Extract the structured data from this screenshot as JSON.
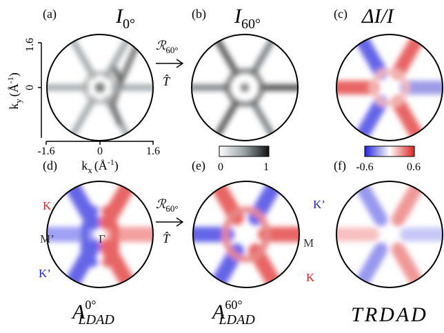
{
  "panels": [
    {
      "label": "(a)",
      "title": {
        "base": "I",
        "sub": "0°"
      }
    },
    {
      "label": "(b)",
      "title": {
        "base": "I",
        "sub": "60°"
      }
    },
    {
      "label": "(c)",
      "title": {
        "text": "ΔI/I"
      }
    },
    {
      "label": "(d)",
      "title": {
        "base": "A",
        "sup": "0°",
        "sub": "LDAD"
      },
      "annotations": [
        "K",
        "M’",
        "K’",
        "Γ"
      ]
    },
    {
      "label": "(e)",
      "title": {
        "base": "A",
        "sup": "60°",
        "sub": "LDAD"
      },
      "annotations": [
        "K’",
        "M",
        "K"
      ]
    },
    {
      "label": "(f)",
      "title": {
        "text": "TRDAD"
      }
    }
  ],
  "axes": {
    "y_label": {
      "base": "k",
      "sub": "y",
      "unit": "(Å",
      "exp": "-1",
      "close": ")"
    },
    "x_label": {
      "base": "k",
      "sub": "x",
      "unit": "(Å",
      "exp": "-1",
      "close": ")"
    },
    "y_ticks": [
      "1.6",
      "0"
    ],
    "x_ticks": [
      "-1.6",
      "0",
      "1.6"
    ]
  },
  "operators": [
    {
      "rotation": {
        "base": "ℛ",
        "sub": "60°"
      },
      "reversal": "T̂"
    },
    {
      "rotation": {
        "base": "ℛ",
        "sub": "60°"
      },
      "reversal": "T̂"
    }
  ],
  "colorbars": [
    {
      "min": "0",
      "max": "1"
    },
    {
      "min": "-0.6",
      "max": "0.6"
    }
  ]
}
